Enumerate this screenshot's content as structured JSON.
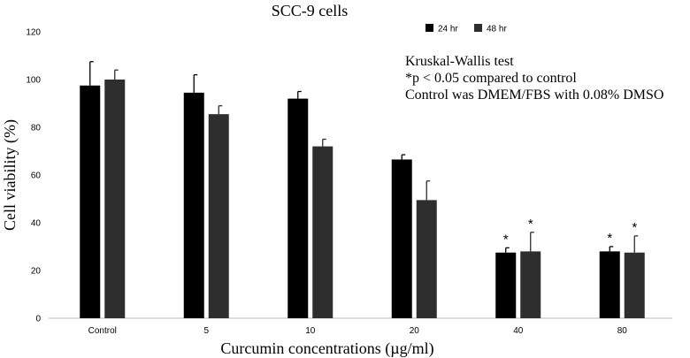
{
  "chart_data": {
    "type": "bar",
    "title": "SCC-9 cells",
    "xlabel": "Curcumin concentrations (µg/ml)",
    "ylabel": "Cell viability (%)",
    "ylim": [
      0,
      120
    ],
    "yticks": [
      0,
      20,
      40,
      60,
      80,
      100,
      120
    ],
    "categories": [
      "Control",
      "5",
      "10",
      "20",
      "40",
      "80"
    ],
    "series": [
      {
        "name": "24 hr",
        "color": "#000000",
        "values": [
          97.5,
          94.5,
          92,
          66.5,
          27.5,
          28
        ],
        "errors": [
          10,
          7.5,
          3,
          2,
          2,
          2
        ],
        "significance": [
          "",
          "",
          "",
          "",
          "*",
          "*"
        ]
      },
      {
        "name": "48 hr",
        "color": "#2e2e2e",
        "values": [
          100,
          85.5,
          72,
          49.5,
          28,
          27.5
        ],
        "errors": [
          4,
          3.5,
          3,
          8,
          8,
          7
        ],
        "significance": [
          "",
          "",
          "",
          "",
          "*",
          "*"
        ]
      }
    ],
    "legend_position": "top-right",
    "annotations": [
      "Kruskal-Wallis test",
      "*p < 0.05 compared to control",
      "Control was DMEM/FBS with 0.08% DMSO"
    ]
  }
}
